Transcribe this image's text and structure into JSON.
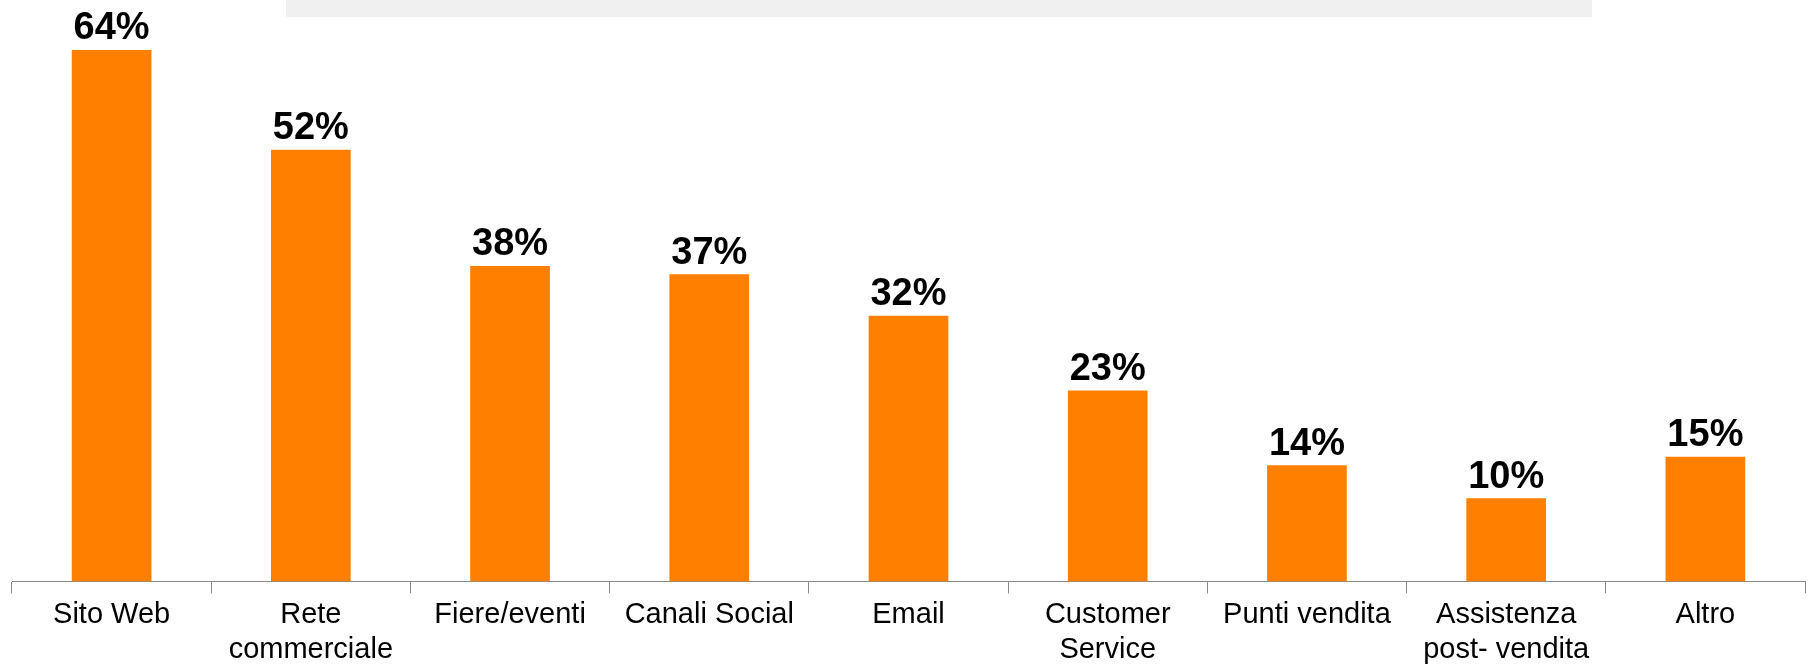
{
  "chart_data": {
    "type": "bar",
    "categories": [
      "Sito Web",
      "Rete commerciale",
      "Fiere/eventi",
      "Canali Social",
      "Email",
      "Customer Service",
      "Punti vendita",
      "Assistenza post- vendita",
      "Altro"
    ],
    "values": [
      64,
      52,
      38,
      37,
      32,
      23,
      14,
      10,
      15
    ],
    "value_labels": [
      "64%",
      "52%",
      "38%",
      "37%",
      "32%",
      "23%",
      "14%",
      "10%",
      "15%"
    ],
    "color": "#ff8000",
    "grid": false,
    "legend": false
  }
}
